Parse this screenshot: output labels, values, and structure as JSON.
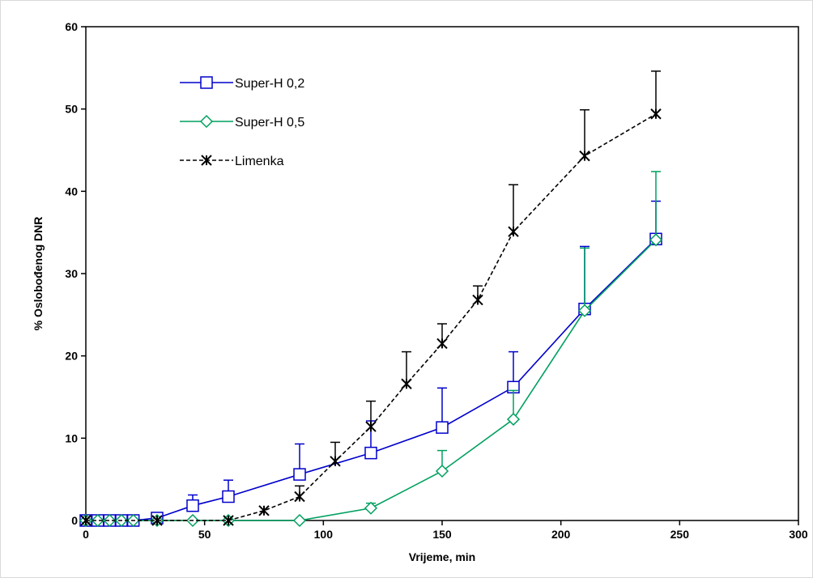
{
  "chart_data": {
    "type": "line",
    "title": "",
    "xlabel": "Vrijeme, min",
    "ylabel": "% Oslobođenog DNR",
    "xlim": [
      0,
      300
    ],
    "ylim": [
      0,
      60
    ],
    "xticks": [
      "0",
      "50",
      "100",
      "150",
      "200",
      "250",
      "300"
    ],
    "yticks": [
      "0",
      "10",
      "20",
      "30",
      "40",
      "50",
      "60"
    ],
    "grid": false,
    "legend_position": "top-left",
    "series": [
      {
        "name": "Super-H 0,2",
        "color": "#0000cc",
        "marker": "square",
        "line": "solid",
        "x": [
          0,
          5,
          10,
          15,
          20,
          30,
          45,
          60,
          90,
          120,
          150,
          180,
          210,
          240
        ],
        "y": [
          0,
          0,
          0,
          0,
          0,
          0.3,
          1.8,
          2.9,
          5.6,
          8.2,
          11.3,
          16.2,
          25.7,
          34.2
        ],
        "error": [
          0,
          0,
          0,
          0,
          0,
          0,
          1.3,
          2.0,
          3.7,
          3.9,
          4.8,
          4.3,
          7.6,
          4.6
        ]
      },
      {
        "name": "Super-H 0,5",
        "color": "#00a060",
        "marker": "diamond",
        "line": "solid",
        "x": [
          0,
          5,
          10,
          15,
          20,
          30,
          45,
          60,
          90,
          120,
          150,
          180,
          210,
          240
        ],
        "y": [
          0,
          0,
          0,
          0,
          0,
          0,
          0,
          0,
          0,
          1.5,
          6.0,
          12.3,
          25.5,
          34.1
        ],
        "error": [
          0,
          0,
          0,
          0,
          0,
          0,
          0,
          0,
          0,
          0.6,
          2.5,
          3.5,
          7.6,
          8.3
        ]
      },
      {
        "name": "Limenka",
        "color": "#000000",
        "marker": "asterisk",
        "line": "dashed",
        "x": [
          0,
          30,
          60,
          75,
          90,
          105,
          120,
          135,
          150,
          165,
          180,
          210,
          240
        ],
        "y": [
          0,
          0,
          0,
          1.2,
          2.9,
          7.2,
          11.4,
          16.6,
          21.5,
          26.8,
          35.1,
          44.3,
          49.4
        ],
        "error": [
          0,
          0,
          0,
          0,
          1.3,
          2.3,
          3.1,
          3.9,
          2.4,
          1.7,
          5.7,
          5.6,
          5.2
        ]
      }
    ]
  }
}
